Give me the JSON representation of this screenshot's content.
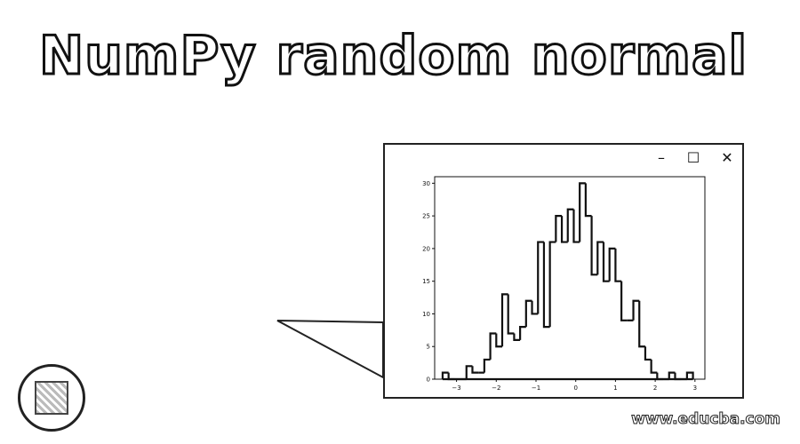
{
  "page": {
    "title": "NumPy random normal",
    "watermark": "www.educba.com"
  },
  "window": {
    "controls": {
      "minimize": "–",
      "maximize": "☐",
      "close": "✕"
    }
  },
  "colors": {
    "stroke": "#111111",
    "background": "#ffffff"
  },
  "chart_data": {
    "type": "bar",
    "histtype": "step",
    "title": "",
    "xlabel": "",
    "ylabel": "",
    "xlim": [
      -3.55,
      3.25
    ],
    "ylim": [
      0,
      31
    ],
    "xticks": [
      -3,
      -2,
      -1,
      0,
      1,
      2,
      3
    ],
    "yticks": [
      0,
      5,
      10,
      15,
      20,
      25,
      30
    ],
    "grid": false,
    "legend": "none",
    "bin_edges": [
      -3.35,
      -3.2,
      -3.05,
      -2.9,
      -2.75,
      -2.6,
      -2.45,
      -2.3,
      -2.15,
      -2.0,
      -1.85,
      -1.7,
      -1.55,
      -1.4,
      -1.25,
      -1.1,
      -0.95,
      -0.8,
      -0.65,
      -0.5,
      -0.35,
      -0.2,
      -0.05,
      0.1,
      0.25,
      0.4,
      0.55,
      0.7,
      0.85,
      1.0,
      1.15,
      1.3,
      1.45,
      1.6,
      1.75,
      1.9,
      2.05,
      2.2,
      2.35,
      2.5,
      2.65,
      2.8,
      2.95
    ],
    "counts": [
      1,
      0,
      0,
      0,
      2,
      1,
      1,
      3,
      7,
      5,
      13,
      7,
      6,
      8,
      12,
      10,
      21,
      8,
      21,
      25,
      21,
      26,
      21,
      30,
      25,
      16,
      21,
      15,
      20,
      15,
      9,
      9,
      12,
      5,
      3,
      1,
      0,
      0,
      1,
      0,
      0,
      1
    ]
  }
}
